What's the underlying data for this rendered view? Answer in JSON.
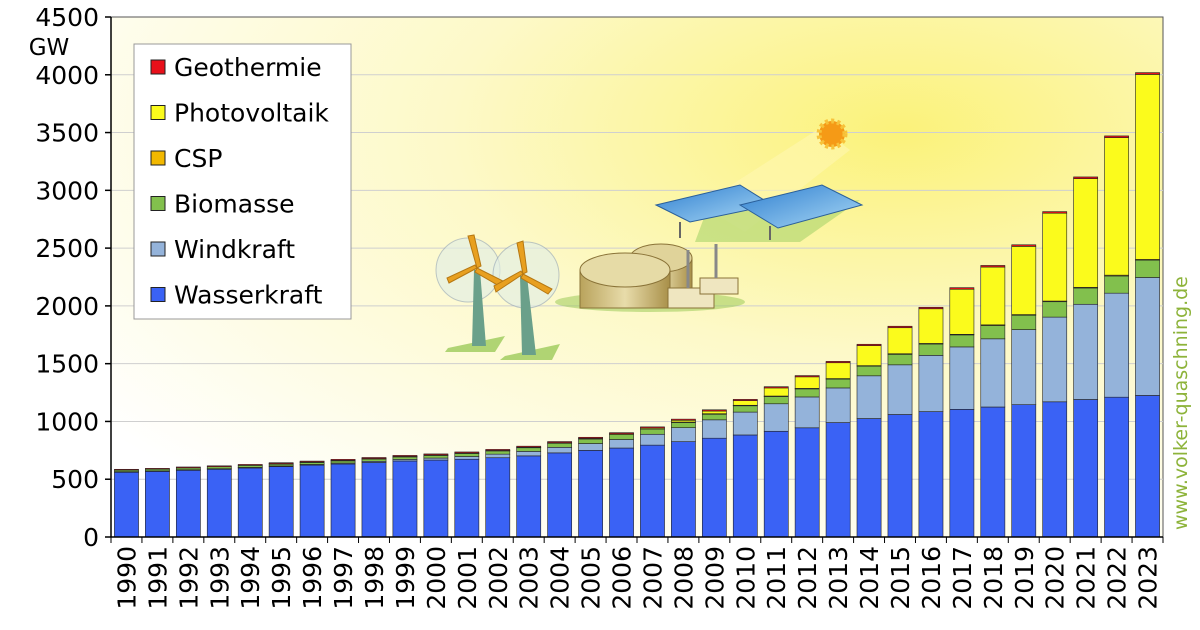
{
  "chart_data": {
    "type": "bar",
    "stacked": true,
    "y_unit": "GW",
    "ylim": [
      0,
      4500
    ],
    "y_ticks": [
      0,
      500,
      1000,
      1500,
      2000,
      2500,
      3000,
      3500,
      4000,
      4500
    ],
    "categories": [
      "1990",
      "1991",
      "1992",
      "1993",
      "1994",
      "1995",
      "1996",
      "1997",
      "1998",
      "1999",
      "2000",
      "2001",
      "2002",
      "2003",
      "2004",
      "2005",
      "2006",
      "2007",
      "2008",
      "2009",
      "2010",
      "2011",
      "2012",
      "2013",
      "2014",
      "2015",
      "2016",
      "2017",
      "2018",
      "2019",
      "2020",
      "2021",
      "2022",
      "2023"
    ],
    "series": [
      {
        "name": "Wasserkraft",
        "color": "#3a62f5",
        "values": [
          563,
          570,
          580,
          588,
          598,
          610,
          622,
          632,
          645,
          658,
          666,
          673,
          686,
          702,
          728,
          750,
          770,
          795,
          825,
          855,
          883,
          915,
          945,
          990,
          1025,
          1060,
          1085,
          1105,
          1125,
          1145,
          1170,
          1190,
          1210,
          1225
        ]
      },
      {
        "name": "Windkraft",
        "color": "#94b3da",
        "values": [
          2,
          2,
          2,
          3,
          4,
          5,
          6,
          8,
          10,
          14,
          17,
          24,
          31,
          39,
          48,
          59,
          74,
          94,
          121,
          159,
          198,
          238,
          267,
          300,
          370,
          430,
          487,
          540,
          590,
          650,
          733,
          824,
          900,
          1021
        ]
      },
      {
        "name": "Biomasse",
        "color": "#82c04d",
        "values": [
          14,
          15,
          16,
          17,
          18,
          19,
          20,
          22,
          23,
          24,
          26,
          28,
          30,
          33,
          36,
          39,
          42,
          45,
          48,
          52,
          58,
          65,
          71,
          77,
          84,
          91,
          98,
          104,
          115,
          124,
          133,
          141,
          149,
          150
        ]
      },
      {
        "name": "CSP",
        "color": "#f2b800",
        "values": [
          0,
          0,
          0,
          0,
          0,
          0,
          0,
          0,
          0,
          0,
          0,
          0,
          0,
          0,
          0,
          0,
          0,
          0,
          1,
          1,
          1,
          2,
          3,
          4,
          4,
          5,
          5,
          5,
          6,
          6,
          6,
          6,
          7,
          7
        ]
      },
      {
        "name": "Photovoltaik",
        "color": "#fbfb1c",
        "values": [
          0,
          0,
          0,
          0,
          0,
          1,
          1,
          1,
          1,
          1,
          1,
          2,
          2,
          3,
          4,
          5,
          7,
          9,
          15,
          23,
          40,
          70,
          100,
          137,
          173,
          225,
          300,
          390,
          500,
          590,
          760,
          940,
          1190,
          1600
        ]
      },
      {
        "name": "Geothermie",
        "color": "#e8101a",
        "values": [
          7,
          7,
          8,
          8,
          8,
          8,
          8,
          9,
          9,
          9,
          9,
          9,
          9,
          9,
          10,
          10,
          10,
          10,
          10,
          11,
          11,
          11,
          11,
          12,
          12,
          13,
          13,
          14,
          14,
          14,
          14,
          15,
          15,
          16
        ]
      }
    ],
    "legend_placement": "top-left",
    "grid": true
  },
  "watermark": "www.volker-quaschning.de"
}
